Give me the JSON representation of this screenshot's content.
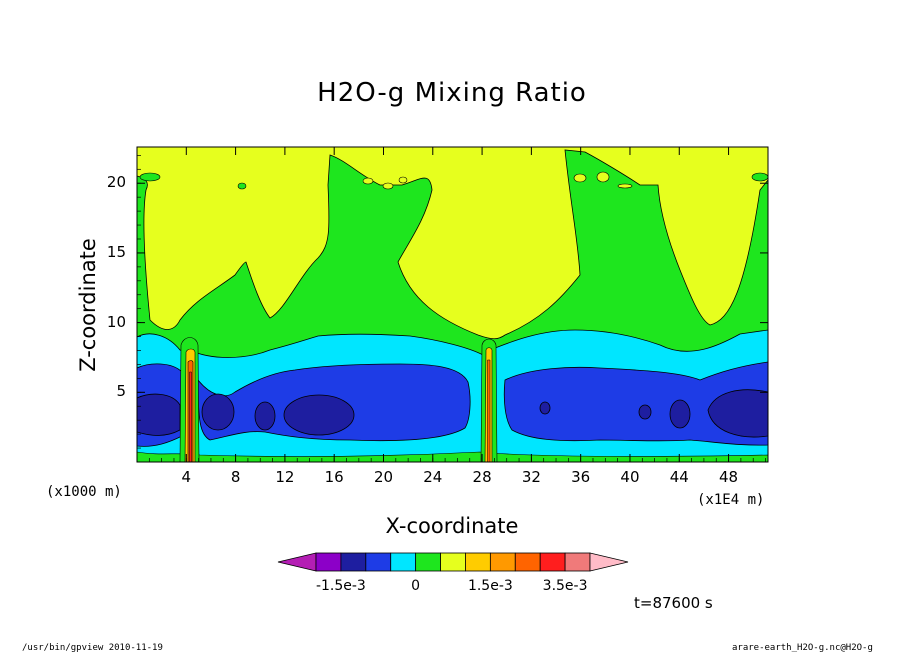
{
  "chart_data": {
    "type": "heatmap",
    "title": "H2O-g Mixing Ratio",
    "xlabel": "X-coordinate",
    "ylabel": "Z-coordinate",
    "x_unit_left": "(x1000 m)",
    "x_unit_right": "(x1E4 m)",
    "x_ticks": [
      4,
      8,
      12,
      16,
      20,
      24,
      28,
      32,
      36,
      40,
      44,
      48
    ],
    "y_ticks": [
      5,
      10,
      15,
      20
    ],
    "xlim": [
      0,
      51.2
    ],
    "ylim": [
      0,
      22.6
    ],
    "colorbar": {
      "colors": [
        "#b41eb4",
        "#8c00c8",
        "#1e1ea0",
        "#1e3ce6",
        "#00e6ff",
        "#1ee61e",
        "#e6ff1e",
        "#ffcc00",
        "#ff9900",
        "#ff6400",
        "#ff1e1e",
        "#f07a7a",
        "#ffbcc8"
      ],
      "labels": [
        "-1.5e-3",
        "0",
        "1.5e-3",
        "3.5e-3"
      ]
    },
    "time_label": "t=87600 s",
    "footer_left": "/usr/bin/gpview   2010-11-19",
    "footer_right": "arare-earth_H2O-g.nc@H2O-g"
  }
}
